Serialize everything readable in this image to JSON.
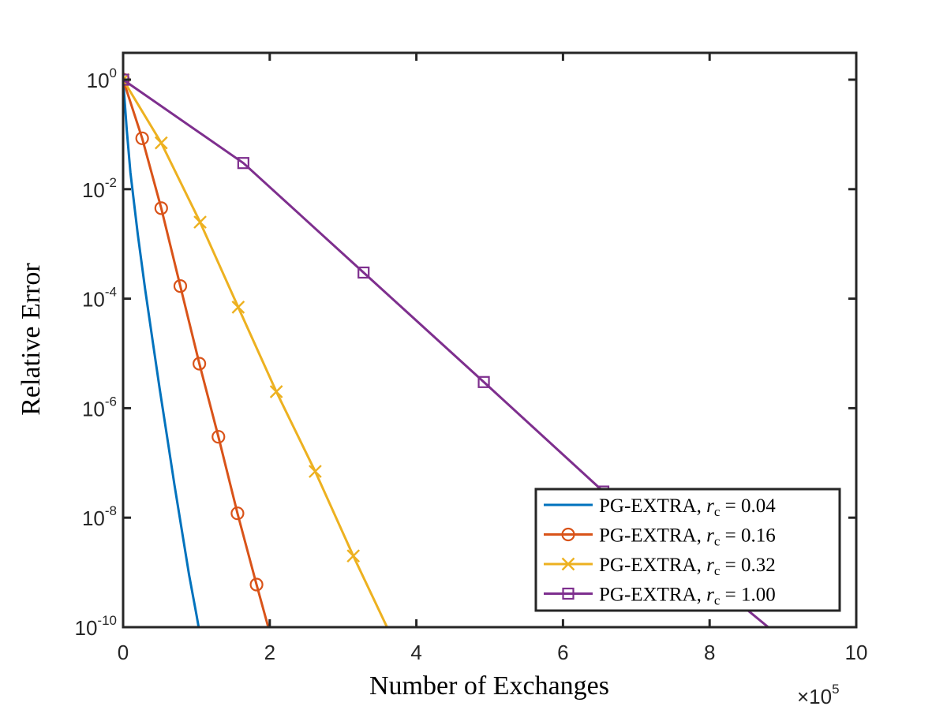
{
  "chart_data": {
    "type": "line",
    "xlabel": "Number of Exchanges",
    "ylabel": "Relative Error",
    "x_multiplier": "×10",
    "x_multiplier_exponent": "5",
    "xlim": [
      0,
      1000000
    ],
    "ylim": [
      1e-10,
      2
    ],
    "y_scale": "log",
    "x_ticks": [
      0,
      200000,
      400000,
      600000,
      800000,
      1000000
    ],
    "x_tick_labels": [
      "0",
      "2",
      "4",
      "6",
      "8",
      "10"
    ],
    "y_ticks": [
      1,
      0.01,
      0.0001,
      1e-06,
      1e-08,
      1e-10
    ],
    "y_tick_labels": [
      {
        "base": "10",
        "exp": "0"
      },
      {
        "base": "10",
        "exp": "-2"
      },
      {
        "base": "10",
        "exp": "-4"
      },
      {
        "base": "10",
        "exp": "-6"
      },
      {
        "base": "10",
        "exp": "-8"
      },
      {
        "base": "10",
        "exp": "-10"
      }
    ],
    "grid": false,
    "legend_position": "bottom-right",
    "series": [
      {
        "name": "PG-EXTRA, r_c = 0.04",
        "legend_prefix": "PG-EXTRA, ",
        "legend_var": "r",
        "legend_sub": "c",
        "legend_value": " = 0.04",
        "color": "#0072BD",
        "marker": "none",
        "x": [
          0,
          5000,
          10000,
          20000,
          30000,
          40000,
          50000,
          60000,
          70000,
          80000,
          90000,
          100000,
          110000,
          115000
        ],
        "y": [
          1,
          0.12,
          0.02,
          0.0015,
          0.00015,
          1.8e-05,
          2.2e-06,
          3e-07,
          4e-08,
          6e-09,
          9e-10,
          1.7e-10,
          3e-11,
          1e-10
        ]
      },
      {
        "name": "PG-EXTRA, r_c = 0.16",
        "legend_prefix": "PG-EXTRA, ",
        "legend_var": "r",
        "legend_sub": "c",
        "legend_value": " = 0.16",
        "color": "#D95319",
        "marker": "circle",
        "x": [
          0,
          26000,
          52000,
          78000,
          104000,
          130000,
          156000,
          182000,
          198000
        ],
        "y": [
          1,
          0.085,
          0.0045,
          0.00017,
          6.5e-06,
          3e-07,
          1.2e-08,
          6e-10,
          1e-10
        ],
        "marker_x": [
          0,
          26000,
          52000,
          78000,
          104000,
          130000,
          156000,
          182000
        ],
        "marker_y": [
          1,
          0.085,
          0.0045,
          0.00017,
          6.5e-06,
          3e-07,
          1.2e-08,
          6e-10
        ]
      },
      {
        "name": "PG-EXTRA, r_c = 0.32",
        "legend_prefix": "PG-EXTRA, ",
        "legend_var": "r",
        "legend_sub": "c",
        "legend_value": " = 0.32",
        "color": "#EDB120",
        "marker": "x",
        "x": [
          0,
          52000,
          105000,
          157000,
          209000,
          262000,
          314000,
          360000
        ],
        "y": [
          1,
          0.07,
          0.0025,
          7e-05,
          2e-06,
          7e-08,
          2e-09,
          1e-10
        ],
        "marker_x": [
          0,
          52000,
          105000,
          157000,
          209000,
          262000,
          314000
        ],
        "marker_y": [
          1,
          0.07,
          0.0025,
          7e-05,
          2e-06,
          7e-08,
          2e-09
        ]
      },
      {
        "name": "PG-EXTRA, r_c = 1.00",
        "legend_prefix": "PG-EXTRA, ",
        "legend_var": "r",
        "legend_sub": "c",
        "legend_value": " = 1.00",
        "color": "#7E2F8E",
        "marker": "square",
        "x": [
          0,
          164000,
          328000,
          492000,
          655000,
          880000
        ],
        "y": [
          1,
          0.03,
          0.0003,
          3e-06,
          3e-08,
          1e-10
        ],
        "marker_x": [
          0,
          164000,
          328000,
          492000,
          655000
        ],
        "marker_y": [
          1,
          0.03,
          0.0003,
          3e-06,
          3e-08
        ]
      }
    ]
  }
}
